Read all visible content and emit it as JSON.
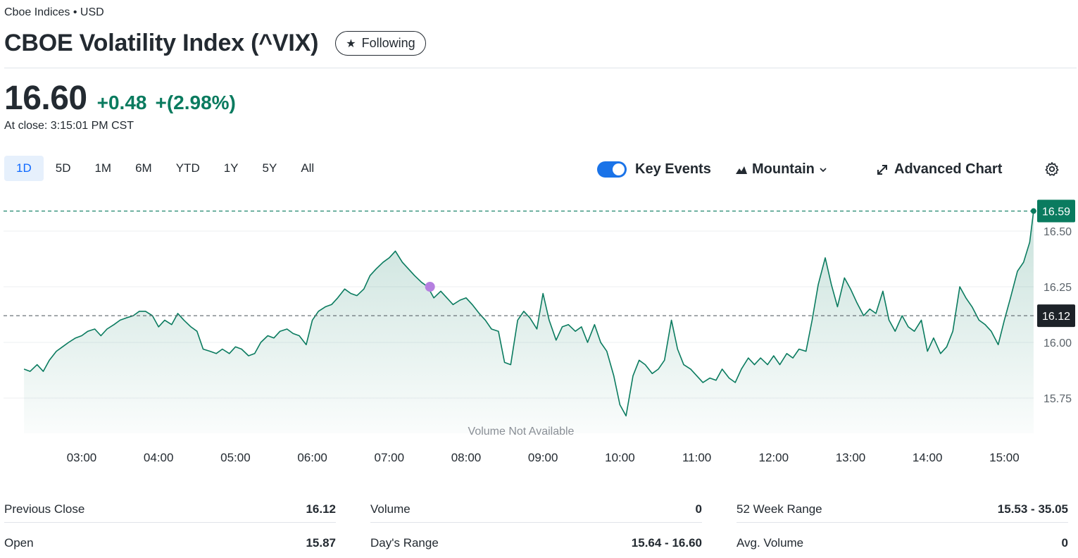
{
  "header": {
    "exchange": "Cboe Indices • USD",
    "title": "CBOE Volatility Index (^VIX)",
    "follow_label": "Following"
  },
  "quote": {
    "price": "16.60",
    "change": "+0.48",
    "change_pct": "+(2.98%)",
    "close_time": "At close: 3:15:01 PM CST"
  },
  "range_tabs": [
    {
      "label": "1D",
      "active": true
    },
    {
      "label": "5D"
    },
    {
      "label": "1M"
    },
    {
      "label": "6M"
    },
    {
      "label": "YTD"
    },
    {
      "label": "1Y"
    },
    {
      "label": "5Y"
    },
    {
      "label": "All"
    }
  ],
  "controls": {
    "key_events_label": "Key Events",
    "key_events_on": true,
    "chart_type_label": "Mountain",
    "advanced_chart_label": "Advanced Chart"
  },
  "colors": {
    "up": "#0a7b5f",
    "accent": "#0f69ff",
    "toggle": "#1a73e8",
    "event_marker": "#b57fe0"
  },
  "chart_data": {
    "type": "area",
    "x_ticks": [
      "03:00",
      "04:00",
      "05:00",
      "06:00",
      "07:00",
      "08:00",
      "09:00",
      "10:00",
      "11:00",
      "12:00",
      "13:00",
      "14:00",
      "15:00"
    ],
    "y_ticks": [
      "16.50",
      "16.25",
      "16.00",
      "15.75"
    ],
    "ylim": [
      15.63,
      16.63
    ],
    "current_label": "16.59",
    "prev_close_label": "16.12",
    "current_value": 16.59,
    "prev_close_value": 16.12,
    "volume_note": "Volume Not Available",
    "series": [
      {
        "values": [
          [
            2.25,
            15.88
          ],
          [
            2.33,
            15.87
          ],
          [
            2.42,
            15.9
          ],
          [
            2.5,
            15.87
          ],
          [
            2.58,
            15.92
          ],
          [
            2.67,
            15.96
          ],
          [
            2.75,
            15.98
          ],
          [
            2.83,
            16.0
          ],
          [
            2.92,
            16.02
          ],
          [
            3.0,
            16.03
          ],
          [
            3.08,
            16.05
          ],
          [
            3.17,
            16.06
          ],
          [
            3.25,
            16.03
          ],
          [
            3.33,
            16.06
          ],
          [
            3.42,
            16.08
          ],
          [
            3.5,
            16.1
          ],
          [
            3.58,
            16.11
          ],
          [
            3.67,
            16.12
          ],
          [
            3.75,
            16.14
          ],
          [
            3.83,
            16.14
          ],
          [
            3.92,
            16.12
          ],
          [
            4.0,
            16.07
          ],
          [
            4.08,
            16.1
          ],
          [
            4.17,
            16.08
          ],
          [
            4.25,
            16.13
          ],
          [
            4.33,
            16.1
          ],
          [
            4.42,
            16.07
          ],
          [
            4.5,
            16.05
          ],
          [
            4.58,
            15.97
          ],
          [
            4.67,
            15.96
          ],
          [
            4.75,
            15.95
          ],
          [
            4.83,
            15.97
          ],
          [
            4.92,
            15.95
          ],
          [
            5.0,
            15.98
          ],
          [
            5.08,
            15.97
          ],
          [
            5.17,
            15.94
          ],
          [
            5.25,
            15.95
          ],
          [
            5.33,
            16.0
          ],
          [
            5.42,
            16.03
          ],
          [
            5.5,
            16.02
          ],
          [
            5.58,
            16.05
          ],
          [
            5.67,
            16.06
          ],
          [
            5.75,
            16.04
          ],
          [
            5.83,
            16.03
          ],
          [
            5.92,
            15.99
          ],
          [
            6.0,
            16.1
          ],
          [
            6.08,
            16.14
          ],
          [
            6.17,
            16.16
          ],
          [
            6.25,
            16.17
          ],
          [
            6.33,
            16.2
          ],
          [
            6.42,
            16.24
          ],
          [
            6.5,
            16.22
          ],
          [
            6.58,
            16.21
          ],
          [
            6.67,
            16.24
          ],
          [
            6.75,
            16.3
          ],
          [
            6.83,
            16.33
          ],
          [
            6.92,
            16.36
          ],
          [
            7.0,
            16.38
          ],
          [
            7.08,
            16.41
          ],
          [
            7.17,
            16.36
          ],
          [
            7.25,
            16.33
          ],
          [
            7.33,
            16.3
          ],
          [
            7.42,
            16.27
          ],
          [
            7.5,
            16.25
          ],
          [
            7.58,
            16.2
          ],
          [
            7.67,
            16.23
          ],
          [
            7.75,
            16.2
          ],
          [
            7.83,
            16.17
          ],
          [
            7.92,
            16.19
          ],
          [
            8.0,
            16.2
          ],
          [
            8.08,
            16.17
          ],
          [
            8.17,
            16.13
          ],
          [
            8.25,
            16.1
          ],
          [
            8.33,
            16.06
          ],
          [
            8.42,
            16.05
          ],
          [
            8.5,
            15.91
          ],
          [
            8.58,
            15.9
          ],
          [
            8.67,
            16.1
          ],
          [
            8.75,
            16.14
          ],
          [
            8.83,
            16.11
          ],
          [
            8.92,
            16.06
          ],
          [
            9.0,
            16.22
          ],
          [
            9.08,
            16.1
          ],
          [
            9.17,
            16.01
          ],
          [
            9.25,
            16.07
          ],
          [
            9.33,
            16.08
          ],
          [
            9.42,
            16.05
          ],
          [
            9.5,
            16.07
          ],
          [
            9.58,
            16.0
          ],
          [
            9.67,
            16.08
          ],
          [
            9.75,
            16.0
          ],
          [
            9.83,
            15.96
          ],
          [
            9.92,
            15.85
          ],
          [
            10.0,
            15.72
          ],
          [
            10.08,
            15.67
          ],
          [
            10.17,
            15.85
          ],
          [
            10.25,
            15.92
          ],
          [
            10.33,
            15.9
          ],
          [
            10.42,
            15.86
          ],
          [
            10.5,
            15.88
          ],
          [
            10.58,
            15.92
          ],
          [
            10.67,
            16.1
          ],
          [
            10.75,
            15.97
          ],
          [
            10.83,
            15.9
          ],
          [
            10.92,
            15.88
          ],
          [
            11.0,
            15.85
          ],
          [
            11.08,
            15.82
          ],
          [
            11.17,
            15.84
          ],
          [
            11.25,
            15.83
          ],
          [
            11.33,
            15.88
          ],
          [
            11.42,
            15.84
          ],
          [
            11.5,
            15.82
          ],
          [
            11.58,
            15.88
          ],
          [
            11.67,
            15.93
          ],
          [
            11.75,
            15.9
          ],
          [
            11.83,
            15.93
          ],
          [
            11.92,
            15.9
          ],
          [
            12.0,
            15.94
          ],
          [
            12.08,
            15.9
          ],
          [
            12.17,
            15.95
          ],
          [
            12.25,
            15.93
          ],
          [
            12.33,
            15.97
          ],
          [
            12.42,
            15.96
          ],
          [
            12.5,
            16.1
          ],
          [
            12.58,
            16.26
          ],
          [
            12.67,
            16.38
          ],
          [
            12.75,
            16.26
          ],
          [
            12.83,
            16.16
          ],
          [
            12.92,
            16.29
          ],
          [
            13.0,
            16.24
          ],
          [
            13.08,
            16.18
          ],
          [
            13.17,
            16.12
          ],
          [
            13.25,
            16.15
          ],
          [
            13.33,
            16.13
          ],
          [
            13.42,
            16.23
          ],
          [
            13.5,
            16.1
          ],
          [
            13.58,
            16.05
          ],
          [
            13.67,
            16.12
          ],
          [
            13.75,
            16.07
          ],
          [
            13.83,
            16.05
          ],
          [
            13.92,
            16.1
          ],
          [
            14.0,
            15.96
          ],
          [
            14.08,
            16.02
          ],
          [
            14.17,
            15.95
          ],
          [
            14.25,
            15.98
          ],
          [
            14.33,
            16.05
          ],
          [
            14.42,
            16.25
          ],
          [
            14.5,
            16.2
          ],
          [
            14.58,
            16.16
          ],
          [
            14.67,
            16.1
          ],
          [
            14.75,
            16.08
          ],
          [
            14.83,
            16.05
          ],
          [
            14.92,
            15.99
          ],
          [
            15.0,
            16.1
          ],
          [
            15.08,
            16.2
          ],
          [
            15.17,
            16.32
          ],
          [
            15.25,
            16.36
          ],
          [
            15.33,
            16.45
          ],
          [
            15.38,
            16.59
          ]
        ]
      }
    ]
  },
  "stats": [
    {
      "label": "Previous Close",
      "value": "16.12"
    },
    {
      "label": "Open",
      "value": "15.87"
    },
    {
      "label": "Volume",
      "value": "0"
    },
    {
      "label": "Day's Range",
      "value": "15.64 - 16.60"
    },
    {
      "label": "52 Week Range",
      "value": "15.53 - 35.05"
    },
    {
      "label": "Avg. Volume",
      "value": "0"
    }
  ]
}
